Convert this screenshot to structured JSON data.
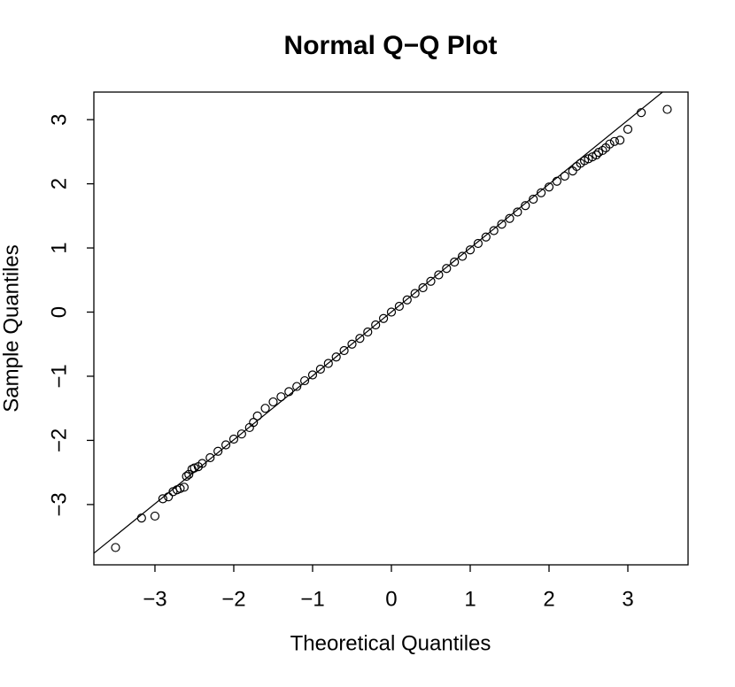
{
  "chart_data": {
    "type": "scatter",
    "title": "Normal Q−Q Plot",
    "x_label": "Theoretical Quantiles",
    "y_label": "Sample Quantiles",
    "xlim": [
      -3.775,
      3.764
    ],
    "ylim": [
      -3.94,
      3.43
    ],
    "xticks": [
      {
        "value": -3,
        "label": "−3"
      },
      {
        "value": -2,
        "label": "−2"
      },
      {
        "value": -1,
        "label": "−1"
      },
      0,
      1,
      2,
      3
    ],
    "yticks": [
      {
        "value": -3,
        "label": "−3"
      },
      {
        "value": -2,
        "label": "−2"
      },
      {
        "value": -1,
        "label": "−1"
      },
      0,
      1,
      2,
      3
    ],
    "color": "#000000",
    "x": [
      -3.5,
      -3.17,
      -3.0,
      -2.9,
      -2.83,
      -2.77,
      -2.72,
      -2.68,
      -2.63,
      -2.6,
      -2.57,
      -2.53,
      -2.5,
      -2.45,
      -2.4,
      -2.3,
      -2.2,
      -2.1,
      -2.0,
      -1.9,
      -1.8,
      -1.75,
      -1.7,
      -1.6,
      -1.5,
      -1.4,
      -1.3,
      -1.2,
      -1.1,
      -1.0,
      -0.9,
      -0.8,
      -0.7,
      -0.6,
      -0.5,
      -0.4,
      -0.3,
      -0.2,
      -0.1,
      0.0,
      0.1,
      0.2,
      0.3,
      0.4,
      0.5,
      0.6,
      0.7,
      0.8,
      0.9,
      1.0,
      1.1,
      1.2,
      1.3,
      1.4,
      1.5,
      1.6,
      1.7,
      1.8,
      1.9,
      2.0,
      2.1,
      2.2,
      2.3,
      2.35,
      2.4,
      2.45,
      2.5,
      2.55,
      2.6,
      2.63,
      2.68,
      2.72,
      2.77,
      2.83,
      2.9,
      3.0,
      3.17,
      3.5
    ],
    "y": [
      -3.67,
      -3.21,
      -3.18,
      -2.91,
      -2.88,
      -2.8,
      -2.77,
      -2.75,
      -2.73,
      -2.56,
      -2.53,
      -2.45,
      -2.43,
      -2.41,
      -2.36,
      -2.27,
      -2.17,
      -2.07,
      -1.98,
      -1.9,
      -1.8,
      -1.72,
      -1.62,
      -1.5,
      -1.4,
      -1.32,
      -1.24,
      -1.16,
      -1.07,
      -0.98,
      -0.89,
      -0.8,
      -0.7,
      -0.6,
      -0.5,
      -0.41,
      -0.31,
      -0.2,
      -0.1,
      0.0,
      0.09,
      0.19,
      0.29,
      0.38,
      0.48,
      0.58,
      0.68,
      0.78,
      0.87,
      0.97,
      1.07,
      1.17,
      1.27,
      1.37,
      1.46,
      1.56,
      1.66,
      1.76,
      1.86,
      1.95,
      2.04,
      2.12,
      2.2,
      2.27,
      2.32,
      2.36,
      2.39,
      2.42,
      2.45,
      2.49,
      2.52,
      2.56,
      2.62,
      2.66,
      2.68,
      2.85,
      3.11,
      3.16
    ],
    "reference_line": {
      "x": [
        -3.775,
        3.44
      ],
      "y": [
        -3.76,
        3.43
      ]
    }
  }
}
